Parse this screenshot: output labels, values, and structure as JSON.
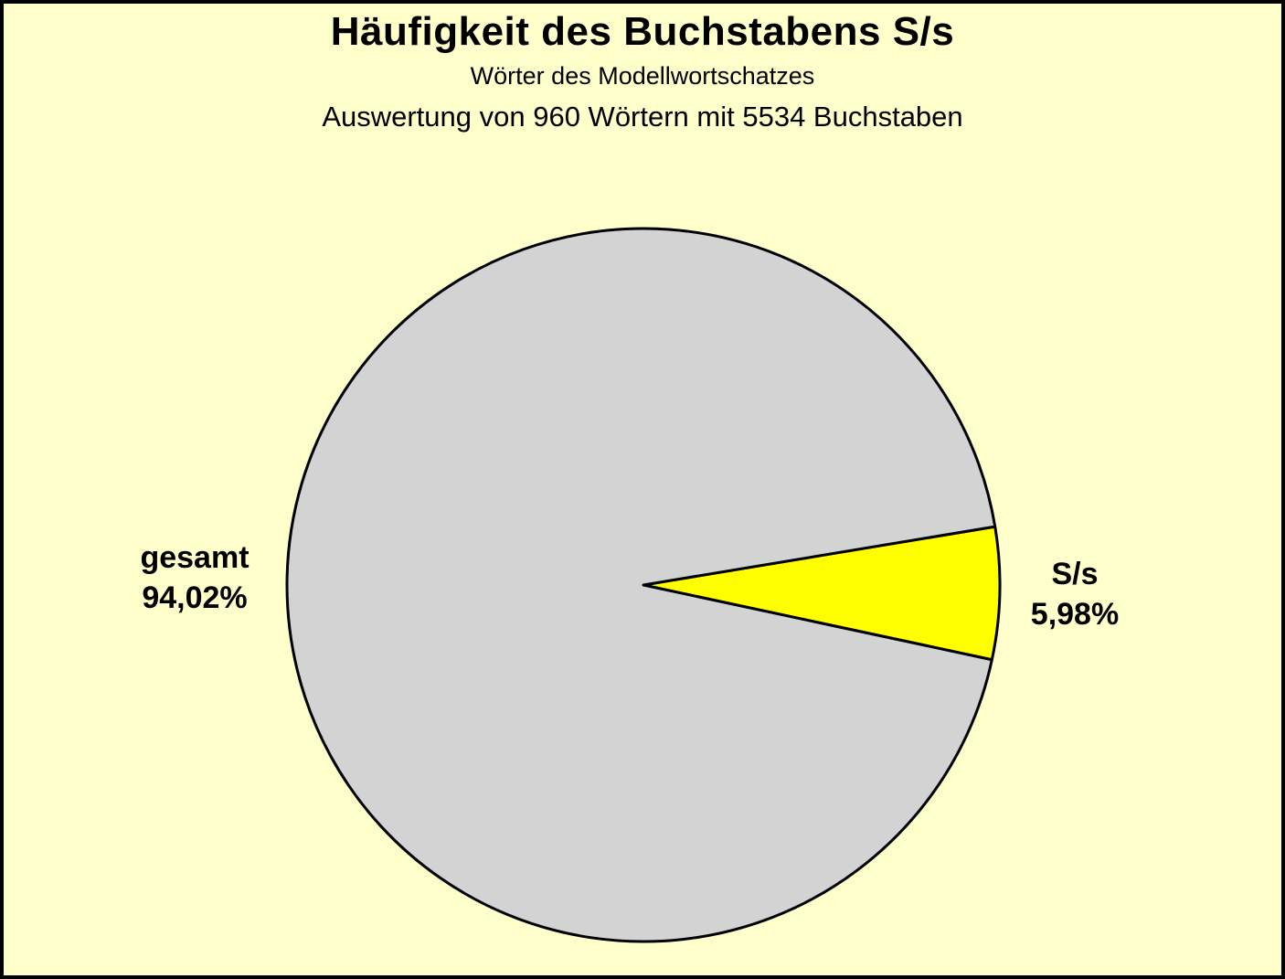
{
  "page": {
    "background_color": "#FFFFCC",
    "frame_border_color": "#000000"
  },
  "header": {
    "title": "Häufigkeit des Buchstabens S/s",
    "subtitle": "Wörter des Modellwortschatzes",
    "note": "Auswertung von 960 Wörtern mit 5534 Buchstaben"
  },
  "chart_data": {
    "type": "pie",
    "title": "Häufigkeit des Buchstabens S/s",
    "subtitle": "Wörter des Modellwortschatzes",
    "note": "Auswertung von 960 Wörtern mit 5534 Buchstaben",
    "words_evaluated": 960,
    "letters_evaluated": 5534,
    "units": "%",
    "slices": [
      {
        "label": "gesamt",
        "value": 94.02,
        "display_value": "94,02%",
        "color": "#D3D3D3"
      },
      {
        "label": "S/s",
        "value": 5.98,
        "display_value": "5,98%",
        "color": "#FFFF00"
      }
    ],
    "layout": {
      "start_angle_deg": -9.43,
      "draw_order": [
        1,
        0
      ],
      "stroke_color": "#000000",
      "stroke_width": 3,
      "legend": "none",
      "labels_position": "outside"
    }
  }
}
